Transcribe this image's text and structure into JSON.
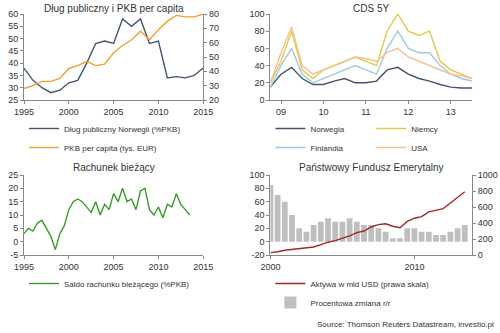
{
  "chart_data": [
    {
      "type": "line",
      "title": "Dług publiczny i PKB per capita",
      "legend": "bottom",
      "grid": false,
      "x": [
        1995,
        1996,
        1997,
        1998,
        1999,
        2000,
        2001,
        2002,
        2003,
        2004,
        2005,
        2006,
        2007,
        2008,
        2009,
        2010,
        2011,
        2012,
        2013,
        2014,
        2015
      ],
      "xlim": [
        1995,
        2015
      ],
      "xticks": [
        1995,
        2000,
        2005,
        2010,
        2015
      ],
      "ylim": [
        25,
        60
      ],
      "yticks": [
        25,
        30,
        35,
        40,
        45,
        50,
        55,
        60
      ],
      "y2lim": [
        20,
        80
      ],
      "y2ticks": [
        20,
        30,
        40,
        50,
        60,
        70,
        80
      ],
      "series": [
        {
          "name": "Dług publiczny Norwegii (%PKB)",
          "color": "#44546a",
          "values": [
            38,
            33,
            30,
            28,
            29,
            32,
            33,
            40,
            48,
            49,
            48,
            58,
            55,
            58,
            48,
            49,
            34,
            34.5,
            34,
            35,
            38
          ]
        },
        {
          "name": "PKB per capita (tys. EUR)",
          "color": "#f0a030",
          "axis": "y2",
          "values": [
            28,
            30,
            33,
            33,
            35,
            42,
            44,
            47,
            44,
            45,
            53,
            58,
            62,
            68,
            62,
            69,
            75,
            79,
            78,
            78,
            80
          ]
        }
      ]
    },
    {
      "type": "line",
      "title": "CDS 5Y",
      "legend": "bottom",
      "grid": false,
      "x": [
        2008.75,
        2009.0,
        2009.25,
        2009.5,
        2009.75,
        2010.0,
        2010.25,
        2010.5,
        2010.75,
        2011.0,
        2011.25,
        2011.5,
        2011.75,
        2012.0,
        2012.25,
        2012.5,
        2012.75,
        2013.0,
        2013.25,
        2013.5
      ],
      "xlim": [
        2008.75,
        2013.5
      ],
      "xticks": [
        {
          "value": 2009,
          "label": "09"
        },
        {
          "value": 2010,
          "label": "10"
        },
        {
          "value": 2011,
          "label": "11"
        },
        {
          "value": 2012,
          "label": "12"
        },
        {
          "value": 2013,
          "label": "13"
        }
      ],
      "ylim": [
        0,
        100
      ],
      "yticks": [
        0,
        20,
        40,
        60,
        80,
        100
      ],
      "y2lim": [
        0,
        100
      ],
      "y2ticks": [
        0,
        20,
        40,
        60,
        80,
        100
      ],
      "series": [
        {
          "name": "Norwegia",
          "color": "#44546a",
          "values": [
            15,
            30,
            38,
            25,
            18,
            18,
            22,
            25,
            20,
            20,
            22,
            35,
            38,
            30,
            25,
            22,
            18,
            15,
            14,
            14
          ]
        },
        {
          "name": "Niemcy",
          "color": "#e6c84a",
          "values": [
            20,
            45,
            80,
            35,
            25,
            35,
            40,
            45,
            50,
            45,
            40,
            80,
            100,
            80,
            75,
            80,
            45,
            35,
            30,
            25
          ]
        },
        {
          "name": "Finlandia",
          "color": "#9ecae1",
          "values": [
            15,
            40,
            60,
            30,
            20,
            25,
            30,
            35,
            40,
            35,
            30,
            60,
            80,
            60,
            55,
            55,
            40,
            30,
            25,
            22
          ]
        },
        {
          "name": "USA",
          "color": "#f4c08f",
          "values": [
            20,
            55,
            85,
            40,
            30,
            35,
            40,
            45,
            50,
            48,
            45,
            55,
            60,
            50,
            45,
            40,
            35,
            30,
            28,
            25
          ]
        }
      ]
    },
    {
      "type": "line",
      "title": "Rachunek bieżący",
      "legend": "bottom",
      "grid": false,
      "x": [
        1995.0,
        1995.5,
        1996.0,
        1996.5,
        1997.0,
        1997.5,
        1998.0,
        1998.5,
        1999.0,
        1999.5,
        2000.0,
        2000.5,
        2001.0,
        2001.5,
        2002.0,
        2002.5,
        2003.0,
        2003.5,
        2004.0,
        2004.5,
        2005.0,
        2005.5,
        2006.0,
        2006.5,
        2007.0,
        2007.5,
        2008.0,
        2008.5,
        2009.0,
        2009.5,
        2010.0,
        2010.5,
        2011.0,
        2011.5,
        2012.0,
        2012.5,
        2013.0,
        2013.5
      ],
      "xlim": [
        1995,
        2015
      ],
      "xticks": [
        1995,
        2000,
        2005,
        2010,
        2015
      ],
      "ylim": [
        -5,
        25
      ],
      "yticks": [
        -5,
        0,
        5,
        10,
        15,
        20,
        25
      ],
      "y2lim": [
        -5,
        25
      ],
      "y2ticks": [
        -5,
        0,
        5,
        10,
        15,
        20,
        25
      ],
      "series": [
        {
          "name": "Saldo rachunku bieżącego (%PKB)",
          "color": "#3a9a2a",
          "values": [
            3,
            5,
            4,
            7,
            8,
            5,
            2,
            -3,
            3,
            6,
            12,
            15,
            16,
            15,
            13,
            11,
            15,
            10,
            14,
            12,
            18,
            15,
            20,
            15,
            16,
            12,
            19,
            20,
            12,
            10,
            13,
            9,
            14,
            13,
            18,
            14,
            12,
            10
          ]
        }
      ]
    },
    {
      "type": "bar",
      "title": "Państwowy Fundusz Emerytalny",
      "legend": "bottom",
      "grid": false,
      "x": [
        2000.0,
        2000.5,
        2001.0,
        2001.5,
        2002.0,
        2002.5,
        2003.0,
        2003.5,
        2004.0,
        2004.5,
        2005.0,
        2005.5,
        2006.0,
        2006.5,
        2007.0,
        2007.5,
        2008.0,
        2008.5,
        2009.0,
        2009.5,
        2010.0,
        2010.5,
        2011.0,
        2011.5,
        2012.0,
        2012.5,
        2013.0,
        2013.5
      ],
      "xlim": [
        2000,
        2014
      ],
      "xticks": [
        2000,
        2010
      ],
      "ylim": [
        -20,
        100
      ],
      "yticks": [
        -20,
        0,
        20,
        40,
        60,
        80,
        100
      ],
      "y2lim": [
        0,
        1000
      ],
      "y2ticks": [
        0,
        200,
        400,
        600,
        800,
        1000
      ],
      "series": [
        {
          "name": "Aktywa w mld USD (prawa skala)",
          "type": "line",
          "color": "#a0282b",
          "axis": "y2",
          "values": [
            30,
            40,
            60,
            70,
            80,
            90,
            100,
            130,
            160,
            180,
            210,
            240,
            280,
            300,
            350,
            380,
            390,
            360,
            340,
            420,
            460,
            480,
            540,
            560,
            580,
            650,
            720,
            790
          ]
        },
        {
          "name": "Procentowa zmiana r/r",
          "type": "bar",
          "color": "#bfbfbf",
          "values": [
            85,
            70,
            60,
            40,
            20,
            15,
            25,
            30,
            35,
            30,
            30,
            35,
            30,
            25,
            25,
            20,
            15,
            5,
            5,
            20,
            20,
            15,
            15,
            10,
            10,
            15,
            20,
            25
          ]
        }
      ]
    }
  ],
  "source": "Source: Thomson Reuters Datastream, investio.pl"
}
